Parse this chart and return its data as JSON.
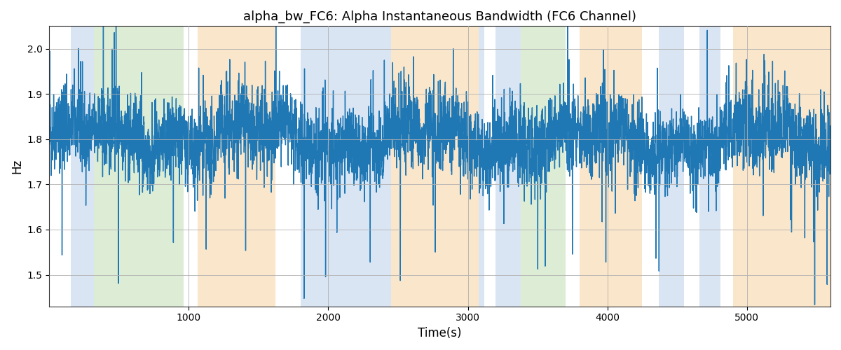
{
  "title": "alpha_bw_FC6: Alpha Instantaneous Bandwidth (FC6 Channel)",
  "xlabel": "Time(s)",
  "ylabel": "Hz",
  "xlim": [
    0,
    5600
  ],
  "ylim": [
    1.43,
    2.05
  ],
  "yticks": [
    1.5,
    1.6,
    1.7,
    1.8,
    1.9,
    2.0
  ],
  "xticks": [
    1000,
    2000,
    3000,
    4000,
    5000
  ],
  "line_color": "#1f77b4",
  "line_width": 1.0,
  "bg_color": "#ffffff",
  "grid_color": "#b0b0b0",
  "title_fontsize": 13,
  "seed": 42,
  "n_points": 5600,
  "bands": [
    {
      "start": 155,
      "end": 320,
      "color": "#aec6e8",
      "alpha": 0.45
    },
    {
      "start": 320,
      "end": 965,
      "color": "#b5d9a3",
      "alpha": 0.45
    },
    {
      "start": 1065,
      "end": 1620,
      "color": "#f5c98a",
      "alpha": 0.45
    },
    {
      "start": 1800,
      "end": 2050,
      "color": "#aec6e8",
      "alpha": 0.45
    },
    {
      "start": 2050,
      "end": 2450,
      "color": "#aec6e8",
      "alpha": 0.45
    },
    {
      "start": 2450,
      "end": 3080,
      "color": "#f5c98a",
      "alpha": 0.45
    },
    {
      "start": 3080,
      "end": 3120,
      "color": "#aec6e8",
      "alpha": 0.45
    },
    {
      "start": 3200,
      "end": 3380,
      "color": "#aec6e8",
      "alpha": 0.45
    },
    {
      "start": 3380,
      "end": 3700,
      "color": "#b5d9a3",
      "alpha": 0.45
    },
    {
      "start": 3800,
      "end": 4250,
      "color": "#f5c98a",
      "alpha": 0.45
    },
    {
      "start": 4370,
      "end": 4550,
      "color": "#aec6e8",
      "alpha": 0.45
    },
    {
      "start": 4660,
      "end": 4810,
      "color": "#aec6e8",
      "alpha": 0.45
    },
    {
      "start": 4900,
      "end": 5600,
      "color": "#f5c98a",
      "alpha": 0.45
    }
  ]
}
